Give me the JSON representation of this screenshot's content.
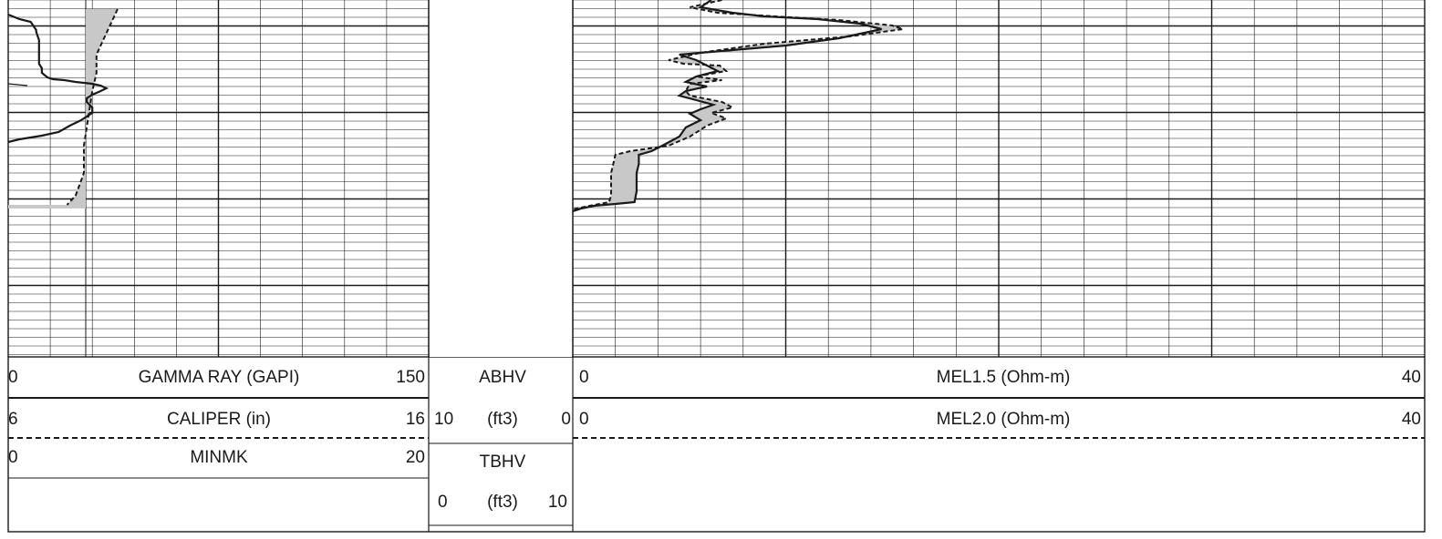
{
  "chart_data": {
    "type": "line",
    "tracks": [
      {
        "name": "track-1",
        "curves": [
          {
            "label": "GAMMA RAY (GAPI)",
            "min": "0",
            "max": "150",
            "style": "solid",
            "values": [
              [
                0,
                16
              ],
              [
                4,
                21
              ],
              [
                8,
                24
              ],
              [
                10,
                33
              ],
              [
                10,
                35
              ],
              [
                11,
                44
              ],
              [
                11,
                70
              ],
              [
                12,
                75
              ],
              [
                12,
                80
              ],
              [
                14,
                85
              ],
              [
                16,
                87
              ],
              [
                20,
                88
              ],
              [
                24,
                90
              ],
              [
                30,
                92
              ],
              [
                33,
                94
              ],
              [
                35,
                97
              ],
              [
                33,
                100
              ],
              [
                30,
                104
              ],
              [
                28,
                108
              ],
              [
                28,
                112
              ],
              [
                30,
                118
              ],
              [
                30,
                124
              ],
              [
                26,
                132
              ],
              [
                22,
                138
              ],
              [
                18,
                145
              ],
              [
                12,
                149
              ],
              [
                4,
                153
              ],
              [
                0,
                156
              ]
            ]
          },
          {
            "label": "CALIPER (in)",
            "min": "6",
            "max": "16",
            "style": "dashed",
            "values": [
              [
                8.6,
                10
              ],
              [
                8.5,
                20
              ],
              [
                8.3,
                40
              ],
              [
                8.1,
                60
              ],
              [
                8.1,
                80
              ],
              [
                8.0,
                100
              ],
              [
                7.9,
                130
              ],
              [
                7.8,
                160
              ],
              [
                7.8,
                190
              ],
              [
                7.6,
                215
              ],
              [
                7.4,
                225
              ]
            ]
          },
          {
            "label": "MINMK",
            "min": "0",
            "max": "20",
            "style": "dashed",
            "values": []
          }
        ]
      },
      {
        "name": "track-2",
        "curves": [
          {
            "label": "ABHV",
            "unit": "(ft3)",
            "min": "10",
            "max": "0",
            "values": []
          },
          {
            "label": "TBHV",
            "unit": "(ft3)",
            "min": "0",
            "max": "10",
            "values": []
          }
        ]
      },
      {
        "name": "track-3",
        "curves": [
          {
            "label": "MEL1.5 (Ohm-m)",
            "min": "0",
            "max": "40",
            "style": "solid",
            "values": [
              [
                6.5,
                0
              ],
              [
                6.0,
                8
              ],
              [
                7.5,
                14
              ],
              [
                9.0,
                18
              ],
              [
                11.5,
                21
              ],
              [
                13.5,
                26
              ],
              [
                14.5,
                32
              ],
              [
                12.5,
                42
              ],
              [
                10.0,
                50
              ],
              [
                7.0,
                56
              ],
              [
                5.0,
                60
              ],
              [
                5.8,
                66
              ],
              [
                6.3,
                72
              ],
              [
                6.8,
                78
              ],
              [
                5.8,
                84
              ],
              [
                5.3,
                90
              ],
              [
                6.3,
                95
              ],
              [
                5.3,
                100
              ],
              [
                5.0,
                105
              ],
              [
                5.8,
                110
              ],
              [
                6.6,
                115
              ],
              [
                6.0,
                120
              ],
              [
                5.5,
                125
              ],
              [
                6.0,
                132
              ],
              [
                5.3,
                140
              ],
              [
                5.0,
                150
              ],
              [
                4.2,
                160
              ],
              [
                3.7,
                166
              ],
              [
                3.1,
                170
              ],
              [
                3.1,
                180
              ],
              [
                3.0,
                190
              ],
              [
                3.0,
                210
              ],
              [
                2.9,
                222
              ],
              [
                2.0,
                224
              ],
              [
                1.0,
                226
              ],
              [
                0.4,
                229
              ],
              [
                0,
                232
              ]
            ]
          },
          {
            "label": "MEL2.0 (Ohm-m)",
            "min": "0",
            "max": "40",
            "style": "dashed",
            "values": [
              [
                7.0,
                0
              ],
              [
                5.5,
                8
              ],
              [
                6.8,
                14
              ],
              [
                9.5,
                18
              ],
              [
                12.5,
                22
              ],
              [
                15.0,
                28
              ],
              [
                15.5,
                32
              ],
              [
                13.0,
                40
              ],
              [
                9.0,
                48
              ],
              [
                6.0,
                58
              ],
              [
                4.5,
                66
              ],
              [
                5.2,
                70
              ],
              [
                6.9,
                72
              ],
              [
                7.2,
                78
              ],
              [
                5.8,
                84
              ],
              [
                7.0,
                88
              ],
              [
                5.5,
                92
              ],
              [
                5.3,
                100
              ],
              [
                5.5,
                105
              ],
              [
                7.0,
                112
              ],
              [
                7.5,
                118
              ],
              [
                6.5,
                124
              ],
              [
                7.2,
                130
              ],
              [
                6.3,
                138
              ],
              [
                5.5,
                150
              ],
              [
                4.5,
                160
              ],
              [
                2.7,
                166
              ],
              [
                2.0,
                170
              ],
              [
                1.9,
                180
              ],
              [
                1.8,
                190
              ],
              [
                1.8,
                215
              ],
              [
                1.7,
                222
              ],
              [
                0.8,
                226
              ],
              [
                0,
                230
              ]
            ]
          }
        ]
      }
    ]
  }
}
